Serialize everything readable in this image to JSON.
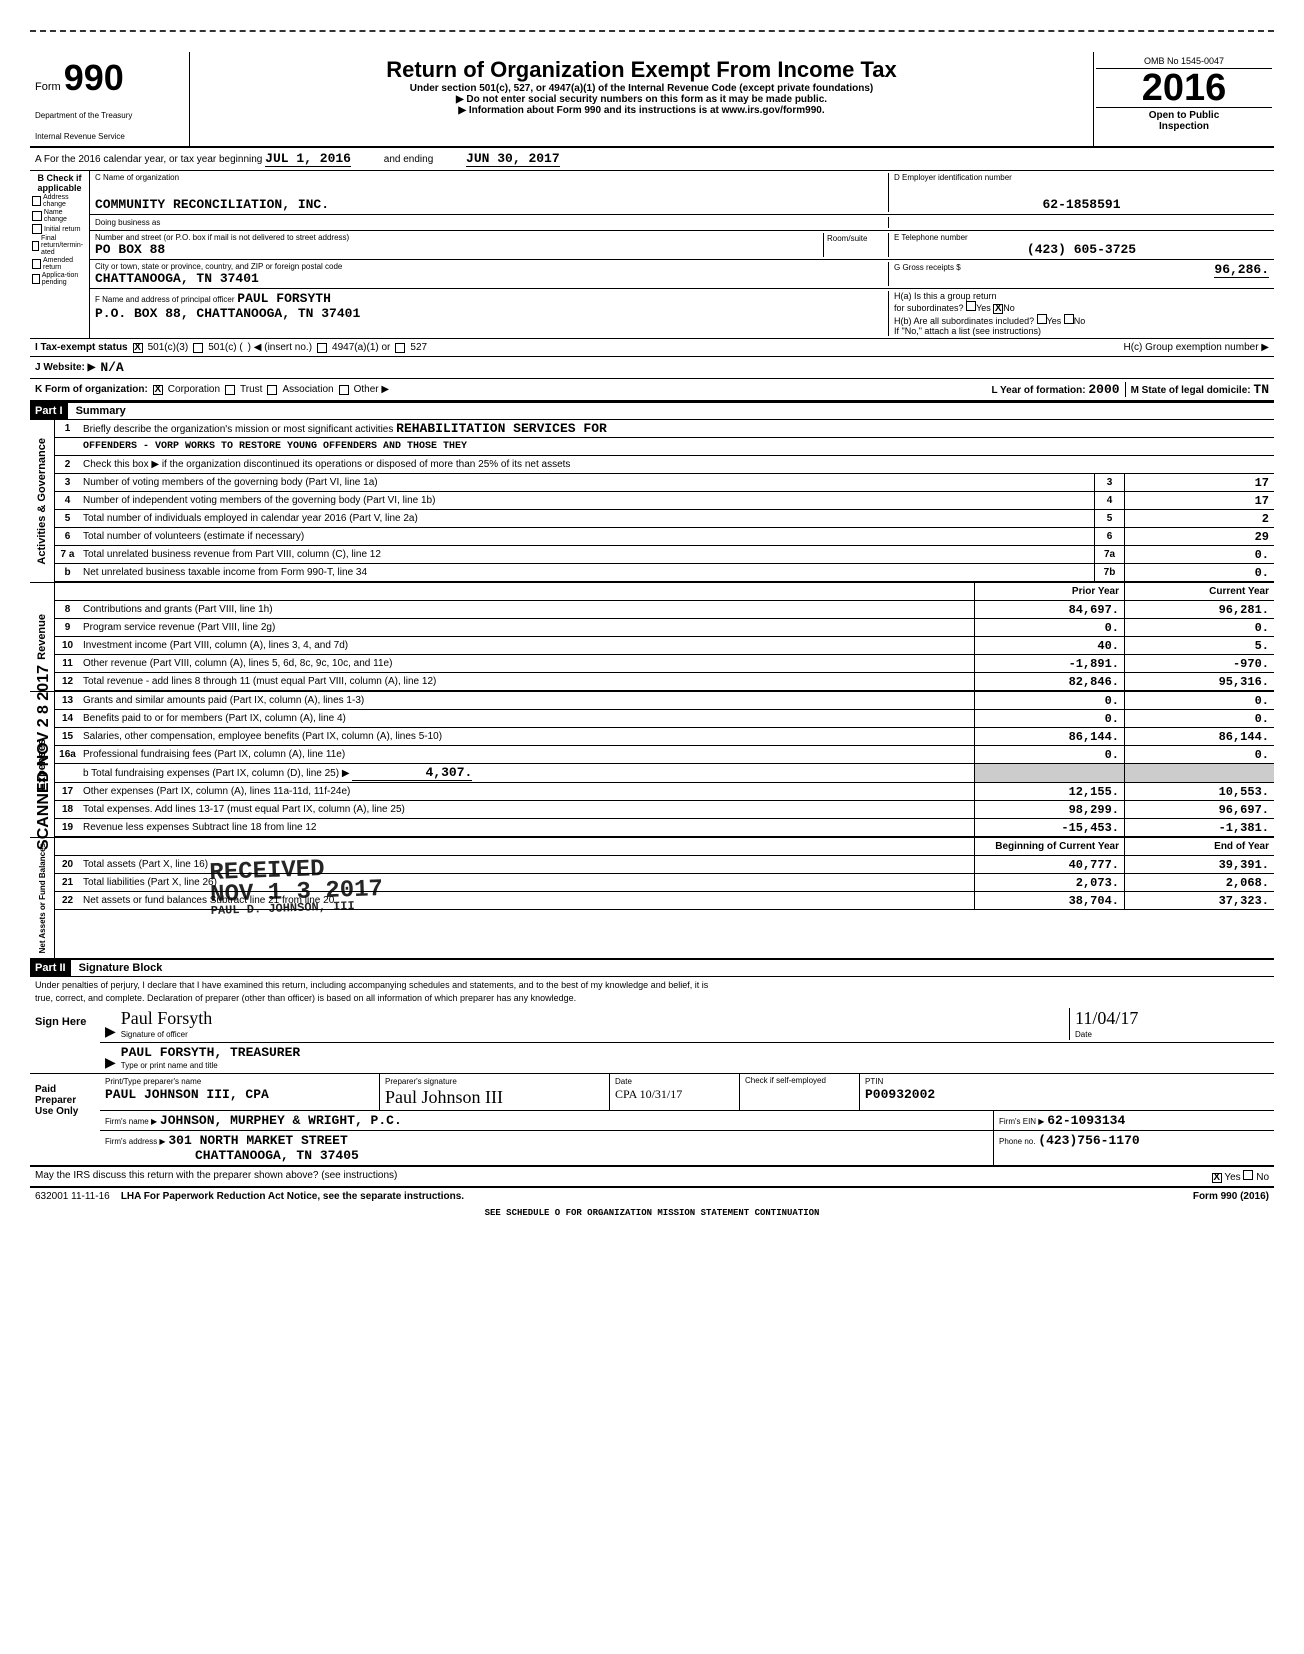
{
  "form": {
    "number": "990",
    "prefix": "Form",
    "title": "Return of Organization Exempt From Income Tax",
    "subtitle": "Under section 501(c), 527, or 4947(a)(1) of the Internal Revenue Code (except private foundations)",
    "warning": "▶ Do not enter social security numbers on this form as it may be made public.",
    "info": "▶ Information about Form 990 and its instructions is at www.irs.gov/form990.",
    "dept1": "Department of the Treasury",
    "dept2": "Internal Revenue Service",
    "omb": "OMB No  1545-0047",
    "year": "2016",
    "open1": "Open to Public",
    "open2": "Inspection"
  },
  "rowA": {
    "text_pre": "A  For the 2016 calendar year, or tax year beginning",
    "begin": "JUL 1, 2016",
    "mid": "and ending",
    "end": "JUN 30, 2017"
  },
  "checkboxes": {
    "header": "B Check if applicable",
    "items": [
      "Address change",
      "Name change",
      "Initial return",
      "Final return/termin-ated",
      "Amended return",
      "Applica-tion pending"
    ]
  },
  "org": {
    "c_label": "C Name of organization",
    "name": "COMMUNITY RECONCILIATION, INC.",
    "dba_label": "Doing business as",
    "addr_label": "Number and street (or P.O. box if mail is not delivered to street address)",
    "room_label": "Room/suite",
    "addr": "PO BOX 88",
    "city_label": "City or town, state or province, country, and ZIP or foreign postal code",
    "city": "CHATTANOOGA, TN  37401",
    "f_label": "F Name and address of principal officer",
    "f_name": "PAUL FORSYTH",
    "f_addr": "P.O. BOX 88, CHATTANOOGA, TN  37401"
  },
  "right": {
    "d_label": "D Employer identification number",
    "ein": "62-1858591",
    "e_label": "E Telephone number",
    "phone": "(423) 605-3725",
    "g_label": "G Gross receipts $",
    "gross": "96,286.",
    "ha_label": "H(a) Is this a group return",
    "ha_label2": "for subordinates?",
    "hb_label": "H(b) Are all subordinates included?",
    "hb_note": "If \"No,\" attach a list  (see instructions)",
    "hc_label": "H(c) Group exemption number ▶"
  },
  "status": {
    "i_label": "I  Tax-exempt status",
    "opt1": "501(c)(3)",
    "opt2": "501(c) (",
    "opt2b": ")  ◀  (insert no.)",
    "opt3": "4947(a)(1) or",
    "opt4": "527",
    "j_label": "J Website: ▶",
    "j_val": "N/A",
    "k_label": "K Form of organization:",
    "k_opts": [
      "Corporation",
      "Trust",
      "Association",
      "Other ▶"
    ],
    "l_label": "L Year of formation:",
    "l_val": "2000",
    "m_label": "M State of legal domicile:",
    "m_val": "TN"
  },
  "part1": {
    "header": "Part I",
    "title": "Summary",
    "line1_label": "Briefly describe the organization's mission or most significant activities",
    "line1a": "REHABILITATION SERVICES FOR",
    "line1b": "OFFENDERS - VORP WORKS TO RESTORE YOUNG OFFENDERS AND THOSE THEY",
    "line2": "Check this box ▶         if the organization discontinued its operations or disposed of more than 25% of its net assets",
    "rows_gov": [
      {
        "n": "3",
        "t": "Number of voting members of the governing body (Part VI, line 1a)",
        "b": "3",
        "v": "17"
      },
      {
        "n": "4",
        "t": "Number of independent voting members of the governing body (Part VI, line 1b)",
        "b": "4",
        "v": "17"
      },
      {
        "n": "5",
        "t": "Total number of individuals employed in calendar year 2016 (Part V, line 2a)",
        "b": "5",
        "v": "2"
      },
      {
        "n": "6",
        "t": "Total number of volunteers (estimate if necessary)",
        "b": "6",
        "v": "29"
      },
      {
        "n": "7 a",
        "t": "Total unrelated business revenue from Part VIII, column (C), line 12",
        "b": "7a",
        "v": "0."
      },
      {
        "n": "b",
        "t": "Net unrelated business taxable income from Form 990-T, line 34",
        "b": "7b",
        "v": "0."
      }
    ],
    "col_prior": "Prior Year",
    "col_current": "Current Year",
    "rows_rev": [
      {
        "n": "8",
        "t": "Contributions and grants (Part VIII, line 1h)",
        "p": "84,697.",
        "c": "96,281."
      },
      {
        "n": "9",
        "t": "Program service revenue (Part VIII, line 2g)",
        "p": "0.",
        "c": "0."
      },
      {
        "n": "10",
        "t": "Investment income (Part VIII, column (A), lines 3, 4, and 7d)",
        "p": "40.",
        "c": "5."
      },
      {
        "n": "11",
        "t": "Other revenue (Part VIII, column (A), lines 5, 6d, 8c, 9c, 10c, and 11e)",
        "p": "-1,891.",
        "c": "-970."
      },
      {
        "n": "12",
        "t": "Total revenue - add lines 8 through 11 (must equal Part VIII, column (A), line 12)",
        "p": "82,846.",
        "c": "95,316."
      }
    ],
    "rows_exp": [
      {
        "n": "13",
        "t": "Grants and similar amounts paid (Part IX, column (A), lines 1-3)",
        "p": "0.",
        "c": "0."
      },
      {
        "n": "14",
        "t": "Benefits paid to or for members (Part IX, column (A), line 4)",
        "p": "0.",
        "c": "0."
      },
      {
        "n": "15",
        "t": "Salaries, other compensation, employee benefits (Part IX, column (A), lines 5-10)",
        "p": "86,144.",
        "c": "86,144."
      },
      {
        "n": "16a",
        "t": "Professional fundraising fees (Part IX, column (A), line 11e)",
        "p": "0.",
        "c": "0."
      }
    ],
    "line16b_t": "b Total fundraising expenses (Part IX, column (D), line 25)    ▶",
    "line16b_v": "4,307.",
    "rows_exp2": [
      {
        "n": "17",
        "t": "Other expenses (Part IX, column (A), lines 11a-11d, 11f-24e)",
        "p": "12,155.",
        "c": "10,553."
      },
      {
        "n": "18",
        "t": "Total expenses. Add lines 13-17 (must equal Part IX, column (A), line 25)",
        "p": "98,299.",
        "c": "96,697."
      },
      {
        "n": "19",
        "t": "Revenue less expenses  Subtract line 18 from line 12",
        "p": "-15,453.",
        "c": "-1,381."
      }
    ],
    "col_begin": "Beginning of Current Year",
    "col_end": "End of Year",
    "rows_net": [
      {
        "n": "20",
        "t": "Total assets (Part X, line 16)",
        "p": "40,777.",
        "c": "39,391."
      },
      {
        "n": "21",
        "t": "Total liabilities (Part X, line 26)",
        "p": "2,073.",
        "c": "2,068."
      },
      {
        "n": "22",
        "t": "Net assets or fund balances  Subtract line 21 from line 20",
        "p": "38,704.",
        "c": "37,323."
      }
    ],
    "vert_gov": "Activities & Governance",
    "vert_rev": "Revenue",
    "vert_exp": "Expenses",
    "vert_net": "Net Assets or Fund Balances"
  },
  "part2": {
    "header": "Part II",
    "title": "Signature Block",
    "jurat1": "Under penalties of perjury, I declare that I have examined this return, including accompanying schedules and statements, and to the best of my knowledge and belief, it is",
    "jurat2": "true, correct, and complete. Declaration of preparer (other than officer) is based on all information of which preparer has any knowledge.",
    "sign_here": "Sign Here",
    "sig_label": "Signature of officer",
    "sig_date_label": "Date",
    "sig_date": "11/04/17",
    "name_label": "Type or print name and title",
    "name_val": "PAUL FORSYTH, TREASURER",
    "paid": "Paid Preparer Use Only",
    "prep_name_label": "Print/Type preparer's name",
    "prep_name": "PAUL JOHNSON III, CPA",
    "prep_sig_label": "Preparer's signature",
    "prep_date_label": "Date",
    "prep_date": "CPA 10/31/17",
    "check_self": "Check         if self-employed",
    "ptin_label": "PTIN",
    "ptin": "P00932002",
    "firm_name_label": "Firm's name    ▶",
    "firm_name": "JOHNSON, MURPHEY & WRIGHT, P.C.",
    "firm_ein_label": "Firm's EIN ▶",
    "firm_ein": "62-1093134",
    "firm_addr_label": "Firm's address ▶",
    "firm_addr1": "301 NORTH MARKET STREET",
    "firm_addr2": "CHATTANOOGA, TN 37405",
    "phone_label": "Phone no.",
    "phone": "(423)756-1170",
    "discuss": "May the IRS discuss this return with the preparer shown above? (see instructions)"
  },
  "footer": {
    "code": "632001  11-11-16",
    "lha": "LHA  For Paperwork Reduction Act Notice, see the separate instructions.",
    "form": "Form 990 (2016)",
    "cont": "SEE SCHEDULE O FOR ORGANIZATION MISSION STATEMENT CONTINUATION"
  },
  "stamp": {
    "line1": "RECEIVED",
    "line2": "NOV 1 3 2017",
    "line3": "PAUL D. JOHNSON, III"
  },
  "outer_stamp": "SCANNED NOV 2 8 2017"
}
